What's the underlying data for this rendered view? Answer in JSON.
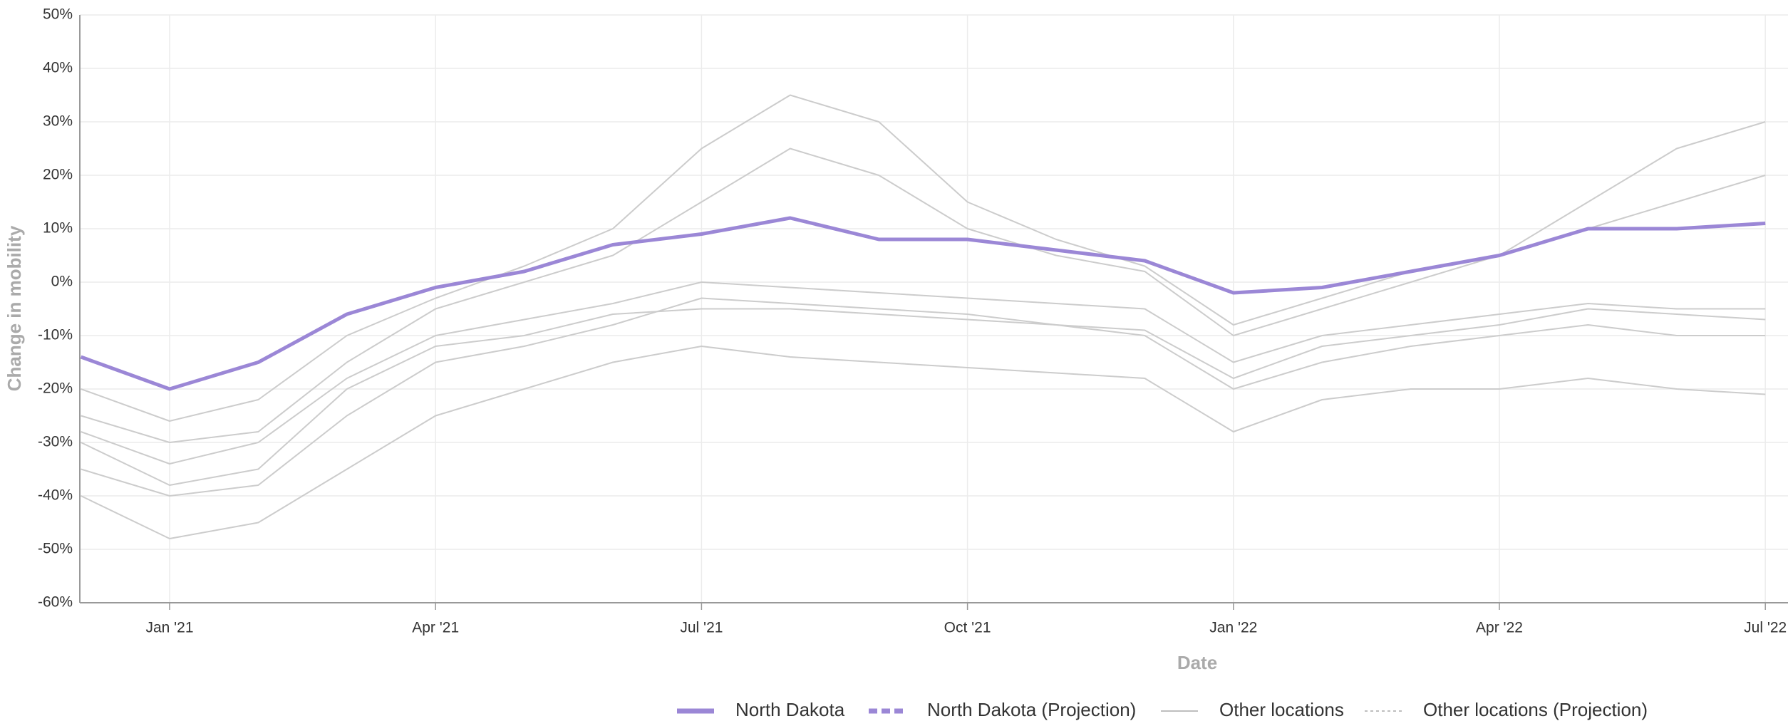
{
  "chart_data": {
    "type": "line",
    "xlabel": "Date",
    "ylabel": "Change in mobility",
    "x": [
      "2020-12",
      "2021-01",
      "2021-02",
      "2021-03",
      "2021-04",
      "2021-05",
      "2021-06",
      "2021-07",
      "2021-08",
      "2021-09",
      "2021-10",
      "2021-11",
      "2021-12",
      "2022-01",
      "2022-02",
      "2022-03",
      "2022-04",
      "2022-05",
      "2022-06",
      "2022-07"
    ],
    "series": [
      {
        "name": "North Dakota",
        "color": "#9b87d6",
        "values": [
          -14,
          -20,
          -15,
          -6,
          -1,
          2,
          7,
          9,
          12,
          8,
          8,
          6,
          4,
          -2,
          -1,
          2,
          5,
          10,
          10,
          11
        ]
      }
    ],
    "other_series_color": "#cccccc",
    "other_series": [
      {
        "values": [
          -30,
          -38,
          -35,
          -20,
          -12,
          -10,
          -6,
          -5,
          -5,
          -6,
          -7,
          -8,
          -9,
          -18,
          -12,
          -10,
          -8,
          -5,
          -6,
          -7
        ]
      },
      {
        "values": [
          -25,
          -30,
          -28,
          -15,
          -5,
          0,
          5,
          15,
          25,
          20,
          10,
          5,
          2,
          -10,
          -5,
          0,
          5,
          15,
          25,
          30
        ]
      },
      {
        "values": [
          -40,
          -48,
          -45,
          -35,
          -25,
          -20,
          -15,
          -12,
          -14,
          -15,
          -16,
          -17,
          -18,
          -28,
          -22,
          -20,
          -20,
          -18,
          -20,
          -21
        ]
      },
      {
        "values": [
          -20,
          -26,
          -22,
          -10,
          -3,
          3,
          10,
          25,
          35,
          30,
          15,
          8,
          3,
          -8,
          -3,
          2,
          5,
          10,
          15,
          20
        ]
      },
      {
        "values": [
          -35,
          -40,
          -38,
          -25,
          -15,
          -12,
          -8,
          -3,
          -4,
          -5,
          -6,
          -8,
          -10,
          -20,
          -15,
          -12,
          -10,
          -8,
          -10,
          -10
        ]
      },
      {
        "values": [
          -28,
          -34,
          -30,
          -18,
          -10,
          -7,
          -4,
          0,
          -1,
          -2,
          -3,
          -4,
          -5,
          -15,
          -10,
          -8,
          -6,
          -4,
          -5,
          -5
        ]
      }
    ],
    "legend": [
      {
        "name": "North Dakota",
        "color": "#9b87d6",
        "style": "solid-thick"
      },
      {
        "name": "North Dakota (Projection)",
        "color": "#9b87d6",
        "style": "dashed-thick"
      },
      {
        "name": "Other locations",
        "color": "#aaaaaa",
        "style": "solid-thin"
      },
      {
        "name": "Other locations (Projection)",
        "color": "#aaaaaa",
        "style": "dashed-thin"
      }
    ],
    "ylim": [
      -60,
      50
    ],
    "yticks": [
      {
        "value": -60,
        "label": "-60%"
      },
      {
        "value": -50,
        "label": "-50%"
      },
      {
        "value": -40,
        "label": "-40%"
      },
      {
        "value": -30,
        "label": "-30%"
      },
      {
        "value": -20,
        "label": "-20%"
      },
      {
        "value": -10,
        "label": "-10%"
      },
      {
        "value": 0,
        "label": "0%"
      },
      {
        "value": 10,
        "label": "10%"
      },
      {
        "value": 20,
        "label": "20%"
      },
      {
        "value": 30,
        "label": "30%"
      },
      {
        "value": 40,
        "label": "40%"
      },
      {
        "value": 50,
        "label": "50%"
      }
    ],
    "xticks": [
      {
        "value": "2021-01",
        "label": "Jan '21"
      },
      {
        "value": "2021-04",
        "label": "Apr '21"
      },
      {
        "value": "2021-07",
        "label": "Jul '21"
      },
      {
        "value": "2021-10",
        "label": "Oct '21"
      },
      {
        "value": "2022-01",
        "label": "Jan '22"
      },
      {
        "value": "2022-04",
        "label": "Apr '22"
      },
      {
        "value": "2022-07",
        "label": "Jul '22"
      }
    ],
    "grid": true
  }
}
